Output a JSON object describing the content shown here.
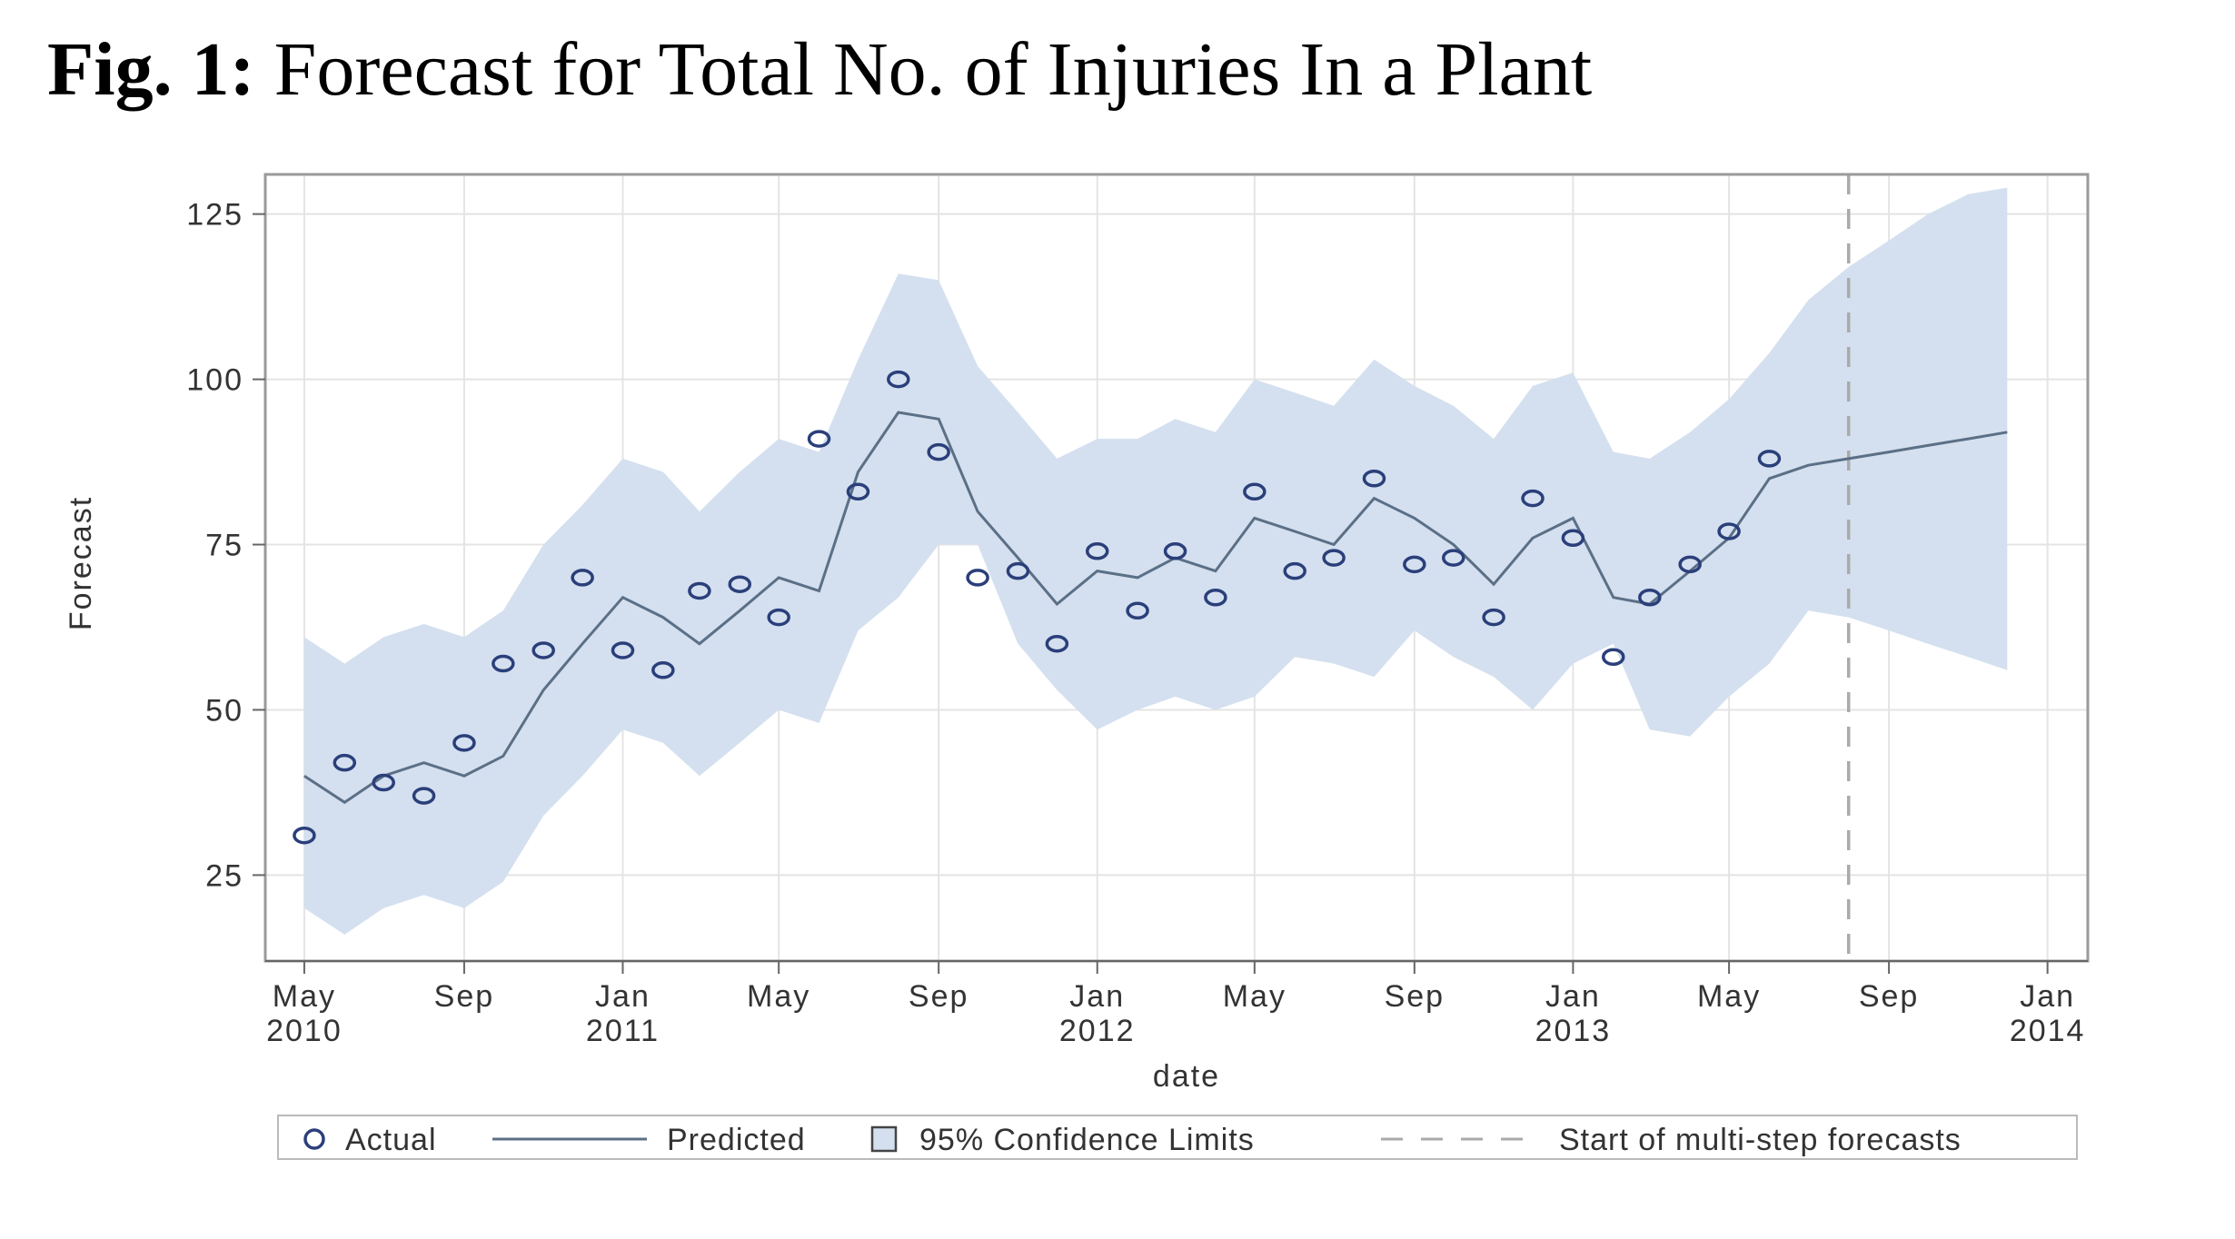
{
  "figure": {
    "label": "Fig. 1:",
    "title": "Forecast for Total No. of Injuries In a Plant"
  },
  "chart_data": {
    "type": "line",
    "xlabel": "date",
    "ylabel": "Forecast",
    "ylim": [
      12,
      131
    ],
    "xlim": [
      "2010-04-01",
      "2014-02-01"
    ],
    "y_ticks": [
      25,
      50,
      75,
      100,
      125
    ],
    "x_ticks": [
      {
        "date": "2010-05-01",
        "line1": "May",
        "line2": "2010"
      },
      {
        "date": "2010-09-01",
        "line1": "Sep",
        "line2": ""
      },
      {
        "date": "2011-01-01",
        "line1": "Jan",
        "line2": "2011"
      },
      {
        "date": "2011-05-01",
        "line1": "May",
        "line2": ""
      },
      {
        "date": "2011-09-01",
        "line1": "Sep",
        "line2": ""
      },
      {
        "date": "2012-01-01",
        "line1": "Jan",
        "line2": "2012"
      },
      {
        "date": "2012-05-01",
        "line1": "May",
        "line2": ""
      },
      {
        "date": "2012-09-01",
        "line1": "Sep",
        "line2": ""
      },
      {
        "date": "2013-01-01",
        "line1": "Jan",
        "line2": "2013"
      },
      {
        "date": "2013-05-01",
        "line1": "May",
        "line2": ""
      },
      {
        "date": "2013-09-01",
        "line1": "Sep",
        "line2": ""
      },
      {
        "date": "2014-01-01",
        "line1": "Jan",
        "line2": "2014"
      }
    ],
    "grid": true,
    "forecast_start": "2013-08-01",
    "colors": {
      "band": "#d4e0ef",
      "line": "#5b6f86",
      "marker": "#2a3f7a",
      "grid": "#e4e4e4",
      "frame": "#9a9a9a",
      "refline": "#aaaaaa"
    },
    "series": [
      {
        "name": "Actual",
        "kind": "marker",
        "x": [
          "2010-05-01",
          "2010-06-01",
          "2010-07-01",
          "2010-08-01",
          "2010-09-01",
          "2010-10-01",
          "2010-11-01",
          "2010-12-01",
          "2011-01-01",
          "2011-02-01",
          "2011-03-01",
          "2011-04-01",
          "2011-05-01",
          "2011-06-01",
          "2011-07-01",
          "2011-08-01",
          "2011-09-01",
          "2011-10-01",
          "2011-11-01",
          "2011-12-01",
          "2012-01-01",
          "2012-02-01",
          "2012-03-01",
          "2012-04-01",
          "2012-05-01",
          "2012-06-01",
          "2012-07-01",
          "2012-08-01",
          "2012-09-01",
          "2012-10-01",
          "2012-11-01",
          "2012-12-01",
          "2013-01-01",
          "2013-02-01",
          "2013-03-01",
          "2013-04-01",
          "2013-05-01",
          "2013-06-01"
        ],
        "y": [
          31,
          42,
          39,
          37,
          45,
          57,
          59,
          70,
          59,
          56,
          68,
          69,
          64,
          91,
          83,
          100,
          89,
          70,
          71,
          60,
          74,
          65,
          74,
          67,
          83,
          71,
          73,
          85,
          72,
          73,
          64,
          82,
          76,
          58,
          67,
          72,
          77,
          88
        ]
      },
      {
        "name": "Predicted",
        "kind": "line",
        "x": [
          "2010-05-01",
          "2010-06-01",
          "2010-07-01",
          "2010-08-01",
          "2010-09-01",
          "2010-10-01",
          "2010-11-01",
          "2010-12-01",
          "2011-01-01",
          "2011-02-01",
          "2011-03-01",
          "2011-04-01",
          "2011-05-01",
          "2011-06-01",
          "2011-07-01",
          "2011-08-01",
          "2011-09-01",
          "2011-10-01",
          "2011-11-01",
          "2011-12-01",
          "2012-01-01",
          "2012-02-01",
          "2012-03-01",
          "2012-04-01",
          "2012-05-01",
          "2012-06-01",
          "2012-07-01",
          "2012-08-01",
          "2012-09-01",
          "2012-10-01",
          "2012-11-01",
          "2012-12-01",
          "2013-01-01",
          "2013-02-01",
          "2013-03-01",
          "2013-04-01",
          "2013-05-01",
          "2013-06-01",
          "2013-07-01",
          "2013-08-01",
          "2013-09-01",
          "2013-10-01",
          "2013-11-01",
          "2013-12-01"
        ],
        "y": [
          40,
          36,
          40,
          42,
          40,
          43,
          53,
          60,
          67,
          64,
          60,
          65,
          70,
          68,
          86,
          95,
          94,
          80,
          73,
          66,
          71,
          70,
          73,
          71,
          79,
          77,
          75,
          82,
          79,
          75,
          69,
          76,
          79,
          67,
          66,
          71,
          76,
          85,
          87,
          88,
          89,
          90,
          91,
          92
        ]
      },
      {
        "name": "95% Confidence Limits",
        "kind": "band",
        "x": [
          "2010-05-01",
          "2010-06-01",
          "2010-07-01",
          "2010-08-01",
          "2010-09-01",
          "2010-10-01",
          "2010-11-01",
          "2010-12-01",
          "2011-01-01",
          "2011-02-01",
          "2011-03-01",
          "2011-04-01",
          "2011-05-01",
          "2011-06-01",
          "2011-07-01",
          "2011-08-01",
          "2011-09-01",
          "2011-10-01",
          "2011-11-01",
          "2011-12-01",
          "2012-01-01",
          "2012-02-01",
          "2012-03-01",
          "2012-04-01",
          "2012-05-01",
          "2012-06-01",
          "2012-07-01",
          "2012-08-01",
          "2012-09-01",
          "2012-10-01",
          "2012-11-01",
          "2012-12-01",
          "2013-01-01",
          "2013-02-01",
          "2013-03-01",
          "2013-04-01",
          "2013-05-01",
          "2013-06-01",
          "2013-07-01",
          "2013-08-01",
          "2013-09-01",
          "2013-10-01",
          "2013-11-01",
          "2013-12-01"
        ],
        "lower": [
          20,
          16,
          20,
          22,
          20,
          24,
          34,
          40,
          47,
          45,
          40,
          45,
          50,
          48,
          62,
          67,
          75,
          75,
          60,
          53,
          47,
          50,
          52,
          50,
          52,
          58,
          57,
          55,
          62,
          58,
          55,
          50,
          57,
          60,
          47,
          46,
          52,
          57,
          65,
          64,
          62,
          60,
          58,
          56
        ],
        "upper": [
          61,
          57,
          61,
          63,
          61,
          65,
          75,
          81,
          88,
          86,
          80,
          86,
          91,
          89,
          103,
          116,
          115,
          102,
          95,
          88,
          91,
          91,
          94,
          92,
          100,
          98,
          96,
          103,
          99,
          96,
          91,
          99,
          101,
          89,
          88,
          92,
          97,
          104,
          112,
          117,
          121,
          125,
          128,
          129
        ]
      }
    ],
    "legend": {
      "placement": "bottom",
      "items": [
        {
          "symbol": "circle",
          "label": "Actual"
        },
        {
          "symbol": "line",
          "label": "Predicted"
        },
        {
          "symbol": "square",
          "label": "95% Confidence Limits"
        },
        {
          "symbol": "dash",
          "label": "Start of multi-step forecasts"
        }
      ]
    }
  }
}
